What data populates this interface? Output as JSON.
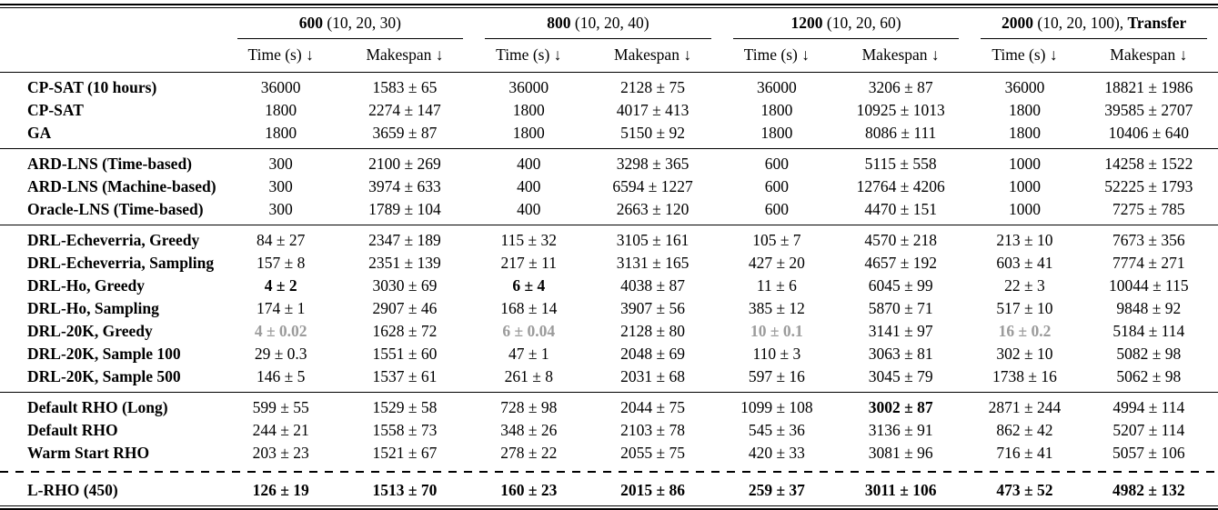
{
  "table": {
    "groups": [
      {
        "size": "600",
        "params": " (10, 20, 30)",
        "suffix": ""
      },
      {
        "size": "800",
        "params": " (10, 20, 40)",
        "suffix": ""
      },
      {
        "size": "1200",
        "params": " (10, 20, 60)",
        "suffix": ""
      },
      {
        "size": "2000",
        "params": " (10, 20, 100), ",
        "suffix": "Transfer"
      }
    ],
    "subheaders": {
      "time": "Time (s) ↓",
      "makespan": "Makespan ↓"
    },
    "sections": [
      {
        "separator": "none",
        "rows": [
          {
            "label": "CP-SAT (10 hours)",
            "cells": [
              "36000",
              "1583 ± 65",
              "36000",
              "2128 ± 75",
              "36000",
              "3206 ± 87",
              "36000",
              "18821 ± 1986"
            ]
          },
          {
            "label": "CP-SAT",
            "cells": [
              "1800",
              "2274 ± 147",
              "1800",
              "4017 ± 413",
              "1800",
              "10925 ± 1013",
              "1800",
              "39585 ± 2707"
            ]
          },
          {
            "label": "GA",
            "cells": [
              "1800",
              "3659 ± 87",
              "1800",
              "5150 ± 92",
              "1800",
              "8086 ± 111",
              "1800",
              "10406 ± 640"
            ]
          }
        ]
      },
      {
        "separator": "solid",
        "rows": [
          {
            "label": "ARD-LNS (Time-based)",
            "cells": [
              "300",
              "2100 ± 269",
              "400",
              "3298 ± 365",
              "600",
              "5115 ± 558",
              "1000",
              "14258 ± 1522"
            ]
          },
          {
            "label": "ARD-LNS (Machine-based)",
            "cells": [
              "300",
              "3974 ± 633",
              "400",
              "6594 ± 1227",
              "600",
              "12764 ± 4206",
              "1000",
              "52225 ± 1793"
            ]
          },
          {
            "label": "Oracle-LNS (Time-based)",
            "cells": [
              "300",
              "1789 ± 104",
              "400",
              "2663 ± 120",
              "600",
              "4470 ± 151",
              "1000",
              "7275 ± 785"
            ]
          }
        ]
      },
      {
        "separator": "solid",
        "rows": [
          {
            "label": "DRL-Echeverria, Greedy",
            "cells": [
              "84 ± 27",
              "2347 ± 189",
              "115 ± 32",
              "3105 ± 161",
              "105 ± 7",
              "4570 ± 218",
              "213 ± 10",
              "7673 ± 356"
            ]
          },
          {
            "label": "DRL-Echeverria, Sampling",
            "cells": [
              "157 ± 8",
              "2351 ± 139",
              "217 ± 11",
              "3131 ± 165",
              "427 ± 20",
              "4657 ± 192",
              "603 ± 41",
              "7774 ± 271"
            ]
          },
          {
            "label": "DRL-Ho, Greedy",
            "cells": [
              "4 ± 2",
              "3030 ± 69",
              "6 ± 4",
              "4038 ± 87",
              "11 ± 6",
              "6045 ± 99",
              "22 ± 3",
              "10044 ± 115"
            ],
            "bold": [
              0,
              2
            ]
          },
          {
            "label": "DRL-Ho, Sampling",
            "cells": [
              "174 ± 1",
              "2907 ± 46",
              "168 ± 14",
              "3907 ± 56",
              "385 ± 12",
              "5870 ± 71",
              "517 ± 10",
              "9848 ± 92"
            ]
          },
          {
            "label": "DRL-20K, Greedy",
            "cells": [
              "4 ± 0.02",
              "1628 ± 72",
              "6 ± 0.04",
              "2128 ± 80",
              "10 ± 0.1",
              "3141 ± 97",
              "16 ± 0.2",
              "5184 ± 114"
            ],
            "gray": [
              0,
              2,
              4,
              6
            ]
          },
          {
            "label": "DRL-20K, Sample 100",
            "cells": [
              "29 ± 0.3",
              "1551 ± 60",
              "47 ± 1",
              "2048 ± 69",
              "110 ± 3",
              "3063 ± 81",
              "302 ± 10",
              "5082 ± 98"
            ]
          },
          {
            "label": "DRL-20K, Sample 500",
            "cells": [
              "146 ± 5",
              "1537 ± 61",
              "261 ± 8",
              "2031 ± 68",
              "597 ± 16",
              "3045 ± 79",
              "1738 ± 16",
              "5062 ± 98"
            ]
          }
        ]
      },
      {
        "separator": "solid",
        "rows": [
          {
            "label": "Default RHO (Long)",
            "cells": [
              "599 ± 55",
              "1529 ± 58",
              "728 ± 98",
              "2044 ± 75",
              "1099 ± 108",
              "3002 ± 87",
              "2871 ± 244",
              "4994 ± 114"
            ],
            "bold": [
              5
            ]
          },
          {
            "label": "Default RHO",
            "cells": [
              "244 ± 21",
              "1558 ± 73",
              "348 ± 26",
              "2103 ± 78",
              "545 ± 36",
              "3136 ± 91",
              "862 ± 42",
              "5207 ± 114"
            ]
          },
          {
            "label": "Warm Start RHO",
            "cells": [
              "203 ± 23",
              "1521 ± 67",
              "278 ± 22",
              "2055 ± 75",
              "420 ± 33",
              "3081 ± 96",
              "716 ± 41",
              "5057 ± 106"
            ]
          }
        ]
      },
      {
        "separator": "dashed",
        "rows": [
          {
            "label": "L-RHO (450)",
            "cells": [
              "126 ± 19",
              "1513 ± 70",
              "160 ± 23",
              "2015 ± 86",
              "259 ± 37",
              "3011 ± 106",
              "473 ± 52",
              "4982 ± 132"
            ],
            "bold": "all"
          }
        ]
      }
    ]
  }
}
